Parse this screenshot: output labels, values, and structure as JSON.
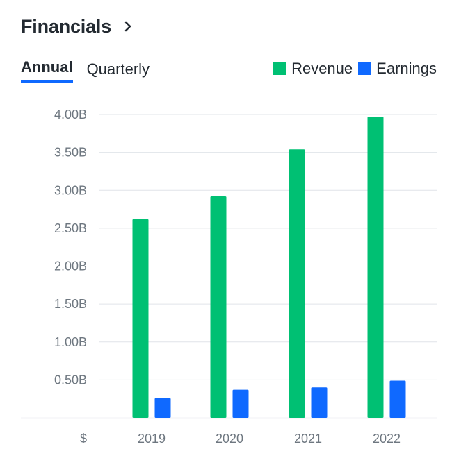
{
  "header": {
    "title": "Financials"
  },
  "tabs": [
    {
      "label": "Annual",
      "active": true
    },
    {
      "label": "Quarterly",
      "active": false
    }
  ],
  "colors": {
    "revenue": "#00c073",
    "earnings": "#0f69ff",
    "accent": "#0f69ff"
  },
  "legend": [
    {
      "label": "Revenue",
      "color": "#00c073"
    },
    {
      "label": "Earnings",
      "color": "#0f69ff"
    }
  ],
  "chart_data": {
    "type": "bar",
    "categories": [
      "2019",
      "2020",
      "2021",
      "2022"
    ],
    "series": [
      {
        "name": "Revenue",
        "values": [
          2.62,
          2.92,
          3.54,
          3.97
        ]
      },
      {
        "name": "Earnings",
        "values": [
          0.26,
          0.37,
          0.4,
          0.49
        ]
      }
    ],
    "yticks": [
      0.5,
      1.0,
      1.5,
      2.0,
      2.5,
      3.0,
      3.5,
      4.0
    ],
    "ytick_labels": [
      "0.50B",
      "1.00B",
      "1.50B",
      "2.00B",
      "2.50B",
      "3.00B",
      "3.50B",
      "4.00B"
    ],
    "ylim": [
      0,
      4.0
    ],
    "currency_label": "$",
    "grid": true
  }
}
